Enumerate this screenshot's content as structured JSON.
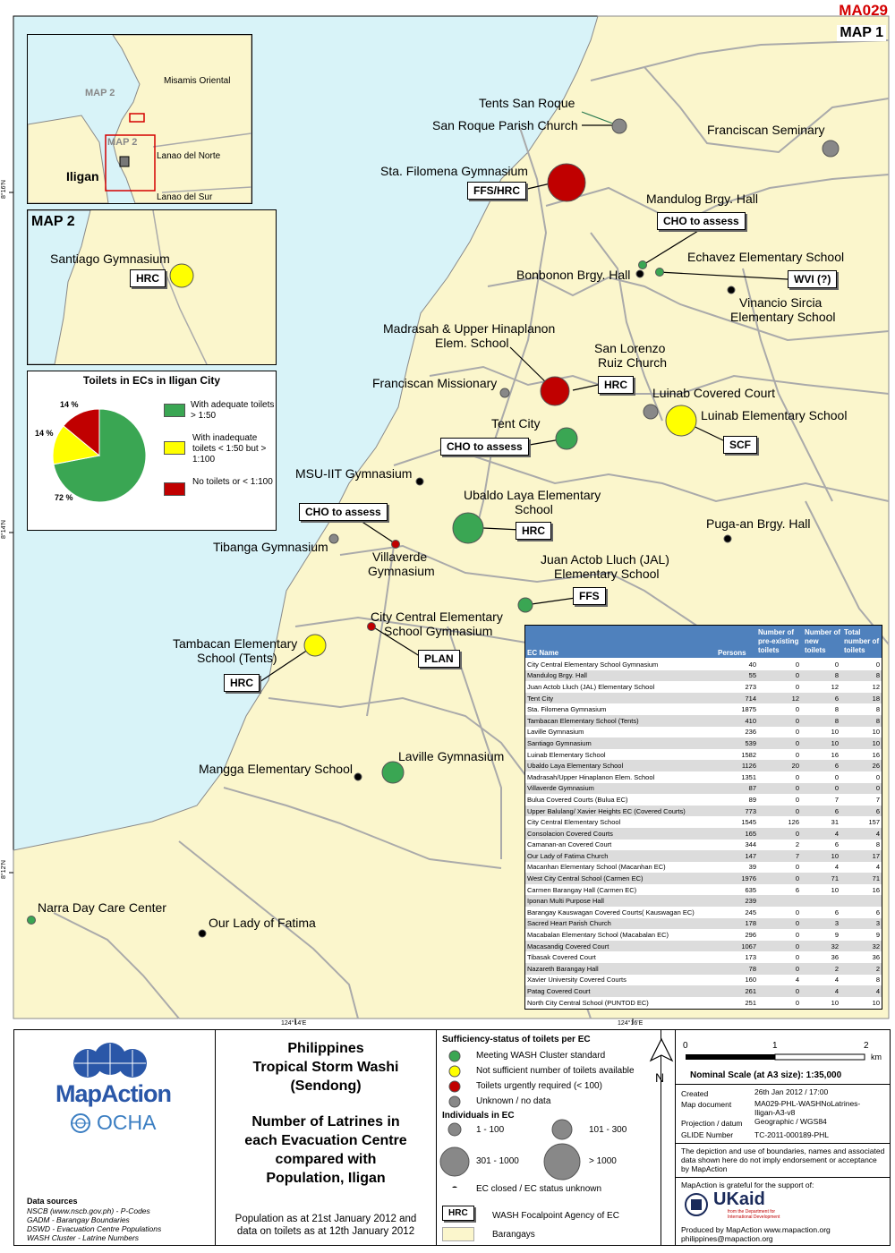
{
  "map_id": "MA029",
  "map_number": "MAP 1",
  "inset": {
    "labels": [
      "Misamis Oriental",
      "Lanao del Norte",
      "Lanao del Sur",
      "Iligan"
    ],
    "map2_label_a": "MAP 2",
    "map2_label_b": "MAP 2"
  },
  "map2": {
    "title": "MAP 2",
    "site": "Santiago Gymnasium",
    "agency": "HRC"
  },
  "pie": {
    "title": "Toilets in ECs in Iligan City",
    "slices": [
      {
        "label": "With adequate toilets > 1:50",
        "percent": 72,
        "pct_text": "72 %",
        "color": "#3aa653"
      },
      {
        "label": "With inadequate toilets < 1:50 but > 1:100",
        "percent": 14,
        "pct_text": "14 %",
        "color": "#ffff00"
      },
      {
        "label": "No toilets or < 1:100",
        "percent": 14,
        "pct_text": "14 %",
        "color": "#c00000"
      }
    ]
  },
  "sites": [
    {
      "name": "Tents San Roque",
      "status": "none"
    },
    {
      "name": "San Roque Parish Church",
      "status": "unknown"
    },
    {
      "name": "Franciscan Seminary",
      "status": "unknown"
    },
    {
      "name": "Sta. Filomena Gymnasium",
      "status": "urgent"
    },
    {
      "name": "Mandulog Brgy. Hall",
      "status": "meeting"
    },
    {
      "name": "Echavez Elementary School",
      "status": "meeting"
    },
    {
      "name": "Bonbonon Brgy. Hall",
      "status": "closed"
    },
    {
      "name": "Vinancio Sircia Elementary School",
      "status": "closed"
    },
    {
      "name": "Madrasah & Upper Hinaplanon Elem. School",
      "status": "urgent"
    },
    {
      "name": "San Lorenzo Ruiz Church",
      "status": "none"
    },
    {
      "name": "Franciscan Missionary",
      "status": "unknown"
    },
    {
      "name": "Luinab Covered Court",
      "status": "unknown"
    },
    {
      "name": "Luinab Elementary School",
      "status": "insufficient"
    },
    {
      "name": "Tent City",
      "status": "meeting"
    },
    {
      "name": "MSU-IIT Gymnasium",
      "status": "closed"
    },
    {
      "name": "Ubaldo Laya Elementary School",
      "status": "meeting"
    },
    {
      "name": "Tibanga Gymnasium",
      "status": "unknown"
    },
    {
      "name": "Villaverde Gymnasium",
      "status": "urgent"
    },
    {
      "name": "Puga-an Brgy. Hall",
      "status": "closed"
    },
    {
      "name": "Juan Actob Lluch (JAL) Elementary School",
      "status": "meeting"
    },
    {
      "name": "City Central Elementary School Gymnasium",
      "status": "urgent"
    },
    {
      "name": "Tambacan Elementary School (Tents)",
      "status": "insufficient"
    },
    {
      "name": "Laville Gymnasium",
      "status": "meeting"
    },
    {
      "name": "Mangga Elementary School",
      "status": "closed"
    },
    {
      "name": "Narra Day Care Center",
      "status": "meeting"
    },
    {
      "name": "Our Lady of Fatima",
      "status": "closed"
    }
  ],
  "label_text": {
    "tents_san_roque": "Tents San Roque",
    "san_roque_church": "San Roque Parish Church",
    "franciscan_seminary": "Franciscan Seminary",
    "sta_filomena": "Sta. Filomena Gymnasium",
    "mandulog": "Mandulog Brgy. Hall",
    "echavez": "Echavez Elementary School",
    "bonbonon": "Bonbonon Brgy. Hall",
    "vinancio_1": "Vinancio Sircia",
    "vinancio_2": "Elementary School",
    "madrasah_1": "Madrasah & Upper Hinaplanon",
    "madrasah_2": "Elem. School",
    "san_lorenzo_1": "San Lorenzo",
    "san_lorenzo_2": "Ruiz Church",
    "franciscan_missionary": "Franciscan Missionary",
    "luinab_court": "Luinab Covered Court",
    "luinab_school": "Luinab Elementary School",
    "tent_city": "Tent City",
    "msu": "MSU-IIT Gymnasium",
    "ubaldo_1": "Ubaldo Laya Elementary",
    "ubaldo_2": "School",
    "tibanga": "Tibanga Gymnasium",
    "villaverde_1": "Villaverde",
    "villaverde_2": "Gymnasium",
    "pugaan": "Puga-an Brgy. Hall",
    "jal_1": "Juan Actob Lluch (JAL)",
    "jal_2": "Elementary School",
    "city_central_1": "City Central Elementary",
    "city_central_2": "School Gymnasium",
    "tambacan_1": "Tambacan Elementary",
    "tambacan_2": "School (Tents)",
    "laville": "Laville Gymnasium",
    "mangga": "Mangga Elementary School",
    "narra": "Narra Day Care Center",
    "fatima": "Our Lady of Fatima"
  },
  "agency_boxes": {
    "sta_filomena": "FFS/HRC",
    "mandulog": "CHO to assess",
    "echavez": "WVI (?)",
    "madrasah": "HRC",
    "luinab": "SCF",
    "tent_city": "CHO to assess",
    "villaverde": "CHO to assess",
    "ubaldo": "HRC",
    "jal": "FFS",
    "city_central": "PLAN",
    "tambacan": "HRC"
  },
  "coords": {
    "lat_16": "8°16'N",
    "lat_14": "8°14'N",
    "lat_12": "8°12'N",
    "lon_14": "124°14'E",
    "lon_16": "124°16'E"
  },
  "table": {
    "headers": [
      "EC Name",
      "Persons",
      "Number of pre-existing toilets",
      "Number of new toilets",
      "Total number of toilets"
    ],
    "rows": [
      [
        "City Central Elementary School Gymnasium",
        "40",
        "0",
        "0",
        "0"
      ],
      [
        "Mandulog Brgy. Hall",
        "55",
        "0",
        "8",
        "8"
      ],
      [
        "Juan Actob Lluch (JAL) Elementary School",
        "273",
        "0",
        "12",
        "12"
      ],
      [
        "Tent City",
        "714",
        "12",
        "6",
        "18"
      ],
      [
        "Sta. Filomena Gymnasium",
        "1875",
        "0",
        "8",
        "8"
      ],
      [
        "Tambacan Elementary School (Tents)",
        "410",
        "0",
        "8",
        "8"
      ],
      [
        "Laville Gymnasium",
        "236",
        "0",
        "10",
        "10"
      ],
      [
        "Santiago Gymnasium",
        "539",
        "0",
        "10",
        "10"
      ],
      [
        "Luinab Elementary School",
        "1582",
        "0",
        "16",
        "16"
      ],
      [
        "Ubaldo Laya Elementary School",
        "1126",
        "20",
        "6",
        "26"
      ],
      [
        "Madrasah/Upper Hinaplanon Elem. School",
        "1351",
        "0",
        "0",
        "0"
      ],
      [
        "Villaverde Gymnasium",
        "87",
        "0",
        "0",
        "0"
      ],
      [
        "Bulua Covered Courts (Bulua EC)",
        "89",
        "0",
        "7",
        "7"
      ],
      [
        "Upper Balulang/ Xavier Heights EC (Covered Courts)",
        "773",
        "0",
        "6",
        "6"
      ],
      [
        "City Central Elementary School",
        "1545",
        "126",
        "31",
        "157"
      ],
      [
        "Consolacion Covered Courts",
        "165",
        "0",
        "4",
        "4"
      ],
      [
        "Camanan-an Covered Court",
        "344",
        "2",
        "6",
        "8"
      ],
      [
        "Our Lady of Fatima Church",
        "147",
        "7",
        "10",
        "17"
      ],
      [
        "Macanhan Elementary School (Macanhan EC)",
        "39",
        "0",
        "4",
        "4"
      ],
      [
        "West City Central School (Carmen EC)",
        "1976",
        "0",
        "71",
        "71"
      ],
      [
        "Carmen Barangay Hall (Carmen EC)",
        "635",
        "6",
        "10",
        "16"
      ],
      [
        "Iponan Multi Purpose Hall",
        "239",
        "",
        "",
        ""
      ],
      [
        "Barangay Kauswagan Covered Courts( Kauswagan EC)",
        "245",
        "0",
        "6",
        "6"
      ],
      [
        "Sacred Heart Parish Church",
        "178",
        "0",
        "3",
        "3"
      ],
      [
        "Macabalan Elementary School (Macabalan EC)",
        "296",
        "0",
        "9",
        "9"
      ],
      [
        "Macasandig Covered Court",
        "1067",
        "0",
        "32",
        "32"
      ],
      [
        "Tibasak Covered Court",
        "173",
        "0",
        "36",
        "36"
      ],
      [
        "Nazareth Barangay Hall",
        "78",
        "0",
        "2",
        "2"
      ],
      [
        "Xavier University Covered Courts",
        "160",
        "4",
        "4",
        "8"
      ],
      [
        "Patag Covered Court",
        "261",
        "0",
        "4",
        "4"
      ],
      [
        "North City Central School (PUNTOD EC)",
        "251",
        "0",
        "10",
        "10"
      ]
    ]
  },
  "footer": {
    "logo_mapaction": "MapAction",
    "logo_ocha": "OCHA",
    "data_sources_title": "Data sources",
    "data_sources": [
      "NSCB (www.nscb.gov.ph) - P-Codes",
      "GADM - Barangay Boundaries",
      "DSWD - Evacuation Centre Populations",
      "WASH Cluster - Latrine Numbers"
    ],
    "title_lines": [
      "Philippines",
      "Tropical Storm Washi",
      "(Sendong)"
    ],
    "subtitle_lines": [
      "Number of Latrines in",
      "each Evacuation Centre",
      "compared with",
      "Population, Iligan"
    ],
    "note_lines": [
      "Population as at 21st January 2012 and",
      "data on toilets as at 12th January 2012"
    ],
    "legend_title": "Sufficiency-status of toilets per EC",
    "legend_status": [
      {
        "label": "Meeting WASH Cluster standard",
        "color": "#3aa653"
      },
      {
        "label": "Not sufficient number of toilets available",
        "color": "#ffff00"
      },
      {
        "label": "Toilets urgently required (< 100)",
        "color": "#c00000"
      },
      {
        "label": "Unknown / no data",
        "color": "#888888"
      }
    ],
    "individuals_title": "Individuals in EC",
    "size_classes": [
      "1 - 100",
      "101 - 300",
      "301 - 1000",
      "> 1000"
    ],
    "closed_label": "EC closed / EC status unknown",
    "hrc_box": "HRC",
    "hrc_label": "WASH Focalpoint Agency of EC",
    "barangays_label": "Barangays",
    "north": "N",
    "scale_ticks": [
      "0",
      "1",
      "2"
    ],
    "scale_unit": "km",
    "nominal_scale": "Nominal Scale (at A3 size): 1:35,000",
    "meta": [
      {
        "k": "Created",
        "v": "26th Jan 2012 / 17:00"
      },
      {
        "k": "Map document",
        "v": "MA029-PHL-WASHNoLatrines-Iligan-A3-v8"
      },
      {
        "k": "Projection / datum",
        "v": "Geographic / WGS84"
      },
      {
        "k": "GLIDE Number",
        "v": "TC-2011-000189-PHL"
      }
    ],
    "disclaimer": "The depiction and use of boundaries, names and associated data shown here do not imply endorsement or acceptance by MapAction",
    "support": "MapAction is grateful for the support of:",
    "ukaid": "UKaid",
    "ukaid_sub": "from the Department for International Development",
    "produced": "Produced by MapAction www.mapaction.org",
    "email": "philippines@mapaction.org"
  }
}
